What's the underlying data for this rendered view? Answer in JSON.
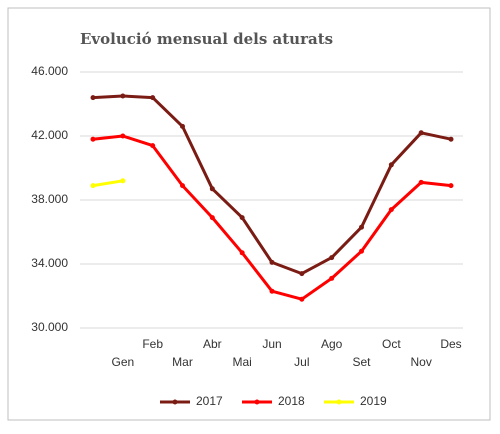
{
  "chart_data": {
    "type": "line",
    "title": "Evolució mensual dels aturats",
    "categories": [
      null,
      "Gen",
      "Feb",
      "Mar",
      "Abr",
      "Mai",
      "Jun",
      "Jul",
      "Ago",
      "Set",
      "Oct",
      "Nov",
      "Des"
    ],
    "series": [
      {
        "name": "2017",
        "color": "#7b1c14",
        "values": [
          44400,
          44500,
          44400,
          42600,
          38700,
          36900,
          34100,
          33400,
          34400,
          36300,
          40200,
          42200,
          41800
        ]
      },
      {
        "name": "2018",
        "color": "#ff0000",
        "values": [
          41800,
          42000,
          41400,
          38900,
          36900,
          34700,
          32300,
          31800,
          33100,
          34800,
          37400,
          39100,
          38900
        ]
      },
      {
        "name": "2019",
        "color": "#ffff00",
        "values": [
          38900,
          39200,
          null,
          null,
          null,
          null,
          null,
          null,
          null,
          null,
          null,
          null,
          null
        ]
      }
    ],
    "ylim": [
      30000,
      46000
    ],
    "yticks": [
      {
        "value": 30000,
        "label": "30.000"
      },
      {
        "value": 34000,
        "label": "34.000"
      },
      {
        "value": 38000,
        "label": "38.000"
      },
      {
        "value": 42000,
        "label": "42.000"
      },
      {
        "value": 46000,
        "label": "46.000"
      }
    ],
    "grid": true,
    "legend": "bottom"
  }
}
